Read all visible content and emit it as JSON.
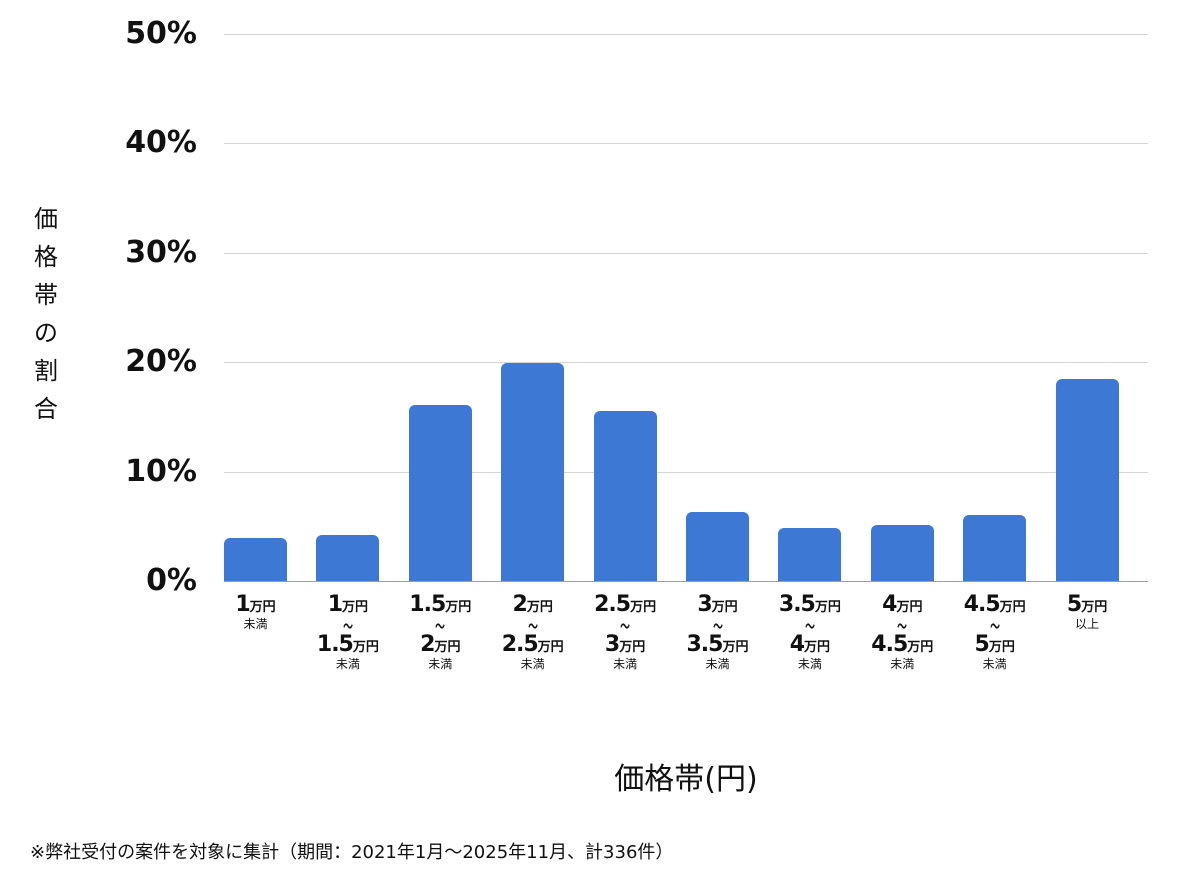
{
  "chart_data": {
    "type": "bar",
    "title": "",
    "xlabel": "価格帯(円)",
    "ylabel": "価格帯の割合",
    "ylim": [
      0,
      50
    ],
    "yticks": [
      "0%",
      "10%",
      "20%",
      "30%",
      "40%",
      "50%"
    ],
    "grid": true,
    "legend": null,
    "bar_color": "#3d79d4",
    "categories": [
      "1万円未満",
      "1万円〜1.5万円未満",
      "1.5万円〜2万円未満",
      "2万円〜2.5万円未満",
      "2.5万円〜3万円未満",
      "3万円〜3.5万円未満",
      "3.5万円〜4万円未満",
      "4万円〜4.5万円未満",
      "4.5万円〜5万円未満",
      "5万円以上"
    ],
    "values": [
      3.9,
      4.2,
      16.1,
      19.9,
      15.5,
      6.3,
      4.8,
      5.1,
      6.0,
      18.5
    ],
    "footnote": "※弊社受付の案件を対象に集計（期間：2021年1月〜2025年11月、計336件）"
  },
  "axis": {
    "y_title_chars": [
      "価",
      "格",
      "帯",
      "の",
      "割",
      "合"
    ],
    "x_title": "価格帯(円)"
  },
  "xlabels": [
    {
      "from_num": "1",
      "from_unit": "万円",
      "wave": "",
      "to_num": "",
      "to_unit": "",
      "suffix": "未満"
    },
    {
      "from_num": "1",
      "from_unit": "万円",
      "wave": "〜",
      "to_num": "1.5",
      "to_unit": "万円",
      "suffix": "未満"
    },
    {
      "from_num": "1.5",
      "from_unit": "万円",
      "wave": "〜",
      "to_num": "2",
      "to_unit": "万円",
      "suffix": "未満"
    },
    {
      "from_num": "2",
      "from_unit": "万円",
      "wave": "〜",
      "to_num": "2.5",
      "to_unit": "万円",
      "suffix": "未満"
    },
    {
      "from_num": "2.5",
      "from_unit": "万円",
      "wave": "〜",
      "to_num": "3",
      "to_unit": "万円",
      "suffix": "未満"
    },
    {
      "from_num": "3",
      "from_unit": "万円",
      "wave": "〜",
      "to_num": "3.5",
      "to_unit": "万円",
      "suffix": "未満"
    },
    {
      "from_num": "3.5",
      "from_unit": "万円",
      "wave": "〜",
      "to_num": "4",
      "to_unit": "万円",
      "suffix": "未満"
    },
    {
      "from_num": "4",
      "from_unit": "万円",
      "wave": "〜",
      "to_num": "4.5",
      "to_unit": "万円",
      "suffix": "未満"
    },
    {
      "from_num": "4.5",
      "from_unit": "万円",
      "wave": "〜",
      "to_num": "5",
      "to_unit": "万円",
      "suffix": "未満"
    },
    {
      "from_num": "5",
      "from_unit": "万円",
      "wave": "",
      "to_num": "",
      "to_unit": "",
      "suffix": "以上"
    }
  ],
  "footnote": "※弊社受付の案件を対象に集計（期間：2021年1月〜2025年11月、計336件）"
}
